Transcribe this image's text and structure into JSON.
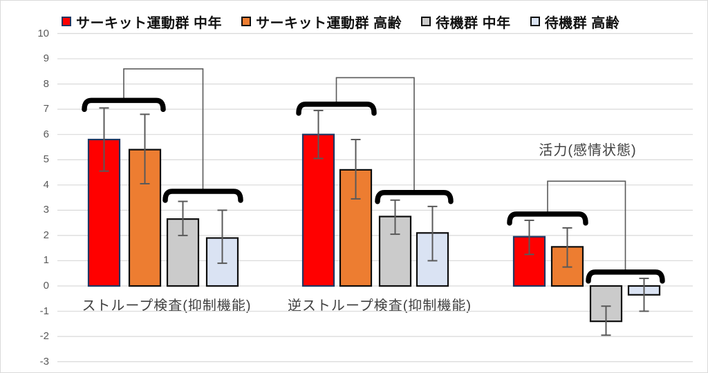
{
  "legend": {
    "items": [
      {
        "label": "サーキット運動群 中年",
        "swatch_color": "#FF0000",
        "swatch_border": "#1F3864"
      },
      {
        "label": "サーキット運動群 高齢",
        "swatch_color": "#ED7D31",
        "swatch_border": "#0D0D0D"
      },
      {
        "label": "待機群 中年",
        "swatch_color": "#CBCBCB",
        "swatch_border": "#0D0D0D"
      },
      {
        "label": "待機群 高齢",
        "swatch_color": "#DAE3F3",
        "swatch_border": "#0D0D0D"
      }
    ]
  },
  "chart_data": {
    "type": "bar",
    "categories": [
      "ストループ検査(抑制機能)",
      "逆ストループ検査(抑制機能)",
      "活力(感情状態)"
    ],
    "series": [
      {
        "name": "サーキット運動群 中年",
        "color": "#FF0000",
        "border_color": "#1F3864",
        "values": [
          5.8,
          6.0,
          1.95
        ],
        "error_low": [
          4.55,
          5.05,
          1.25
        ],
        "error_high": [
          7.05,
          6.95,
          2.6
        ]
      },
      {
        "name": "サーキット運動群 高齢",
        "color": "#ED7D31",
        "border_color": "#0D0D0D",
        "values": [
          5.4,
          4.6,
          1.55
        ],
        "error_low": [
          4.05,
          3.45,
          0.75
        ],
        "error_high": [
          6.8,
          5.8,
          2.3
        ]
      },
      {
        "name": "待機群 中年",
        "color": "#CBCBCB",
        "border_color": "#0D0D0D",
        "values": [
          2.65,
          2.75,
          -1.4
        ],
        "error_low": [
          2.0,
          2.05,
          -1.95
        ],
        "error_high": [
          3.35,
          3.4,
          -0.8
        ]
      },
      {
        "name": "待機群 高齢",
        "color": "#DAE3F3",
        "border_color": "#0D0D0D",
        "values": [
          1.9,
          2.1,
          -0.35
        ],
        "error_low": [
          0.9,
          1.0,
          -1.0
        ],
        "error_high": [
          3.0,
          3.15,
          0.3
        ]
      }
    ],
    "ylim": [
      -3,
      10
    ],
    "yticks": [
      10,
      9,
      8,
      7,
      6,
      5,
      4,
      3,
      2,
      1,
      0,
      -1,
      -2,
      -3
    ],
    "grid": true,
    "legend_position": "top",
    "significance_brackets": [
      {
        "category_index": 0,
        "upper_pair": [
          "サーキット運動群 中年",
          "サーキット運動群 高齢"
        ],
        "upper_pair_y": 7.35,
        "lower_pair": [
          "待機群 中年",
          "待機群 高齢"
        ],
        "lower_pair_y": 3.75,
        "connector_y": 8.6
      },
      {
        "category_index": 1,
        "upper_pair": [
          "サーキット運動群 中年",
          "サーキット運動群 高齢"
        ],
        "upper_pair_y": 7.2,
        "lower_pair": [
          "待機群 中年",
          "待機群 高齢"
        ],
        "lower_pair_y": 3.7,
        "connector_y": 8.25
      },
      {
        "category_index": 2,
        "upper_pair": [
          "サーキット運動群 中年",
          "サーキット運動群 高齢"
        ],
        "upper_pair_y": 2.85,
        "lower_pair": [
          "待機群 中年",
          "待機群 高齢"
        ],
        "lower_pair_y": 0.55,
        "connector_y": 4.15
      }
    ],
    "colors": {
      "grid": "#D9D9D9",
      "error_bar": "#595959",
      "bracket": "#000000",
      "connector": "#595959",
      "tick_text": "#595959",
      "category_text": "#404040"
    }
  }
}
